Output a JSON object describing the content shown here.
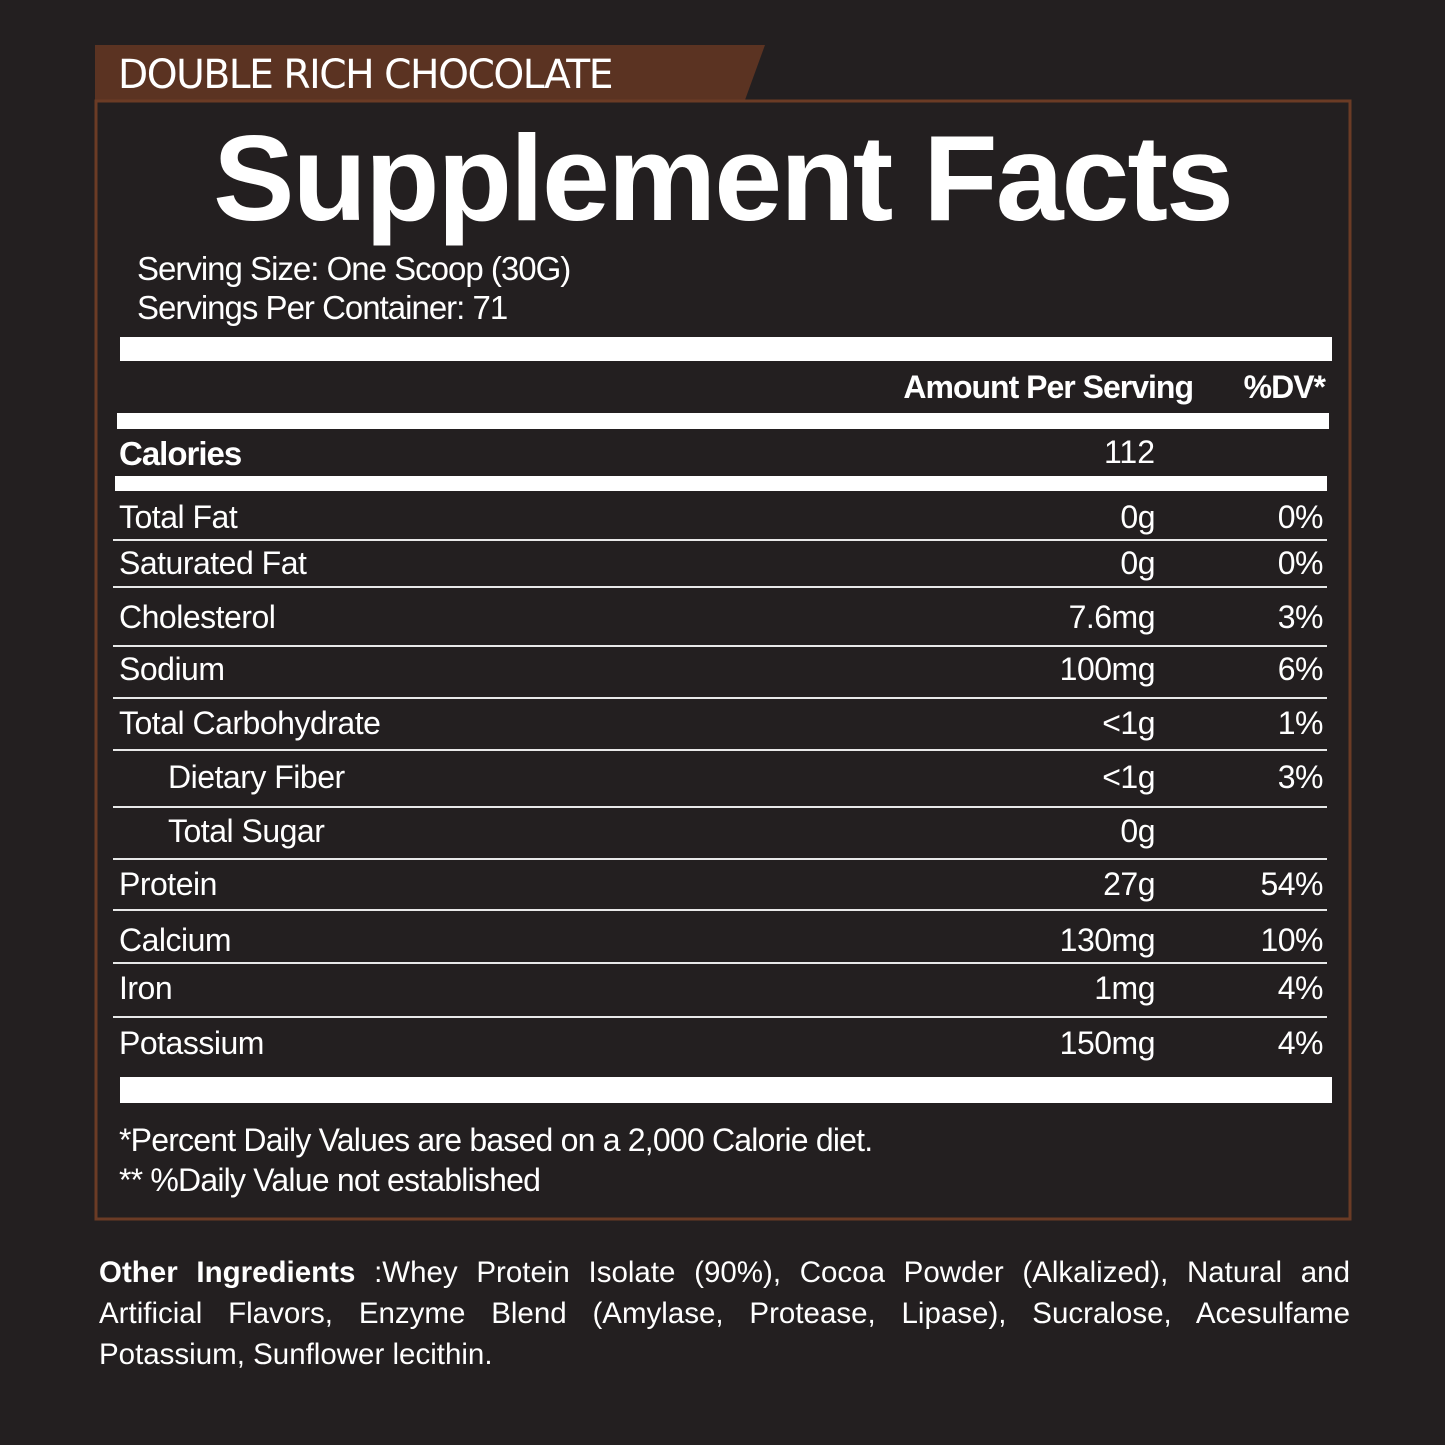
{
  "flavor": "DOUBLE RICH CHOCOLATE",
  "title": "Supplement Facts",
  "serving_size": "Serving Size: One Scoop (30G)",
  "servings_per_container": "Servings Per Container: 71",
  "columns": {
    "amount": "Amount Per Serving",
    "dv": "%DV*"
  },
  "calories": {
    "label": "Calories",
    "amount": "112"
  },
  "rows": [
    {
      "name": "Total Fat",
      "amount": "0g",
      "dv": "0%"
    },
    {
      "name": "Saturated Fat",
      "amount": "0g",
      "dv": "0%"
    },
    {
      "name": "Cholesterol",
      "amount": "7.6mg",
      "dv": "3%"
    },
    {
      "name": "Sodium",
      "amount": "100mg",
      "dv": "6%"
    },
    {
      "name": "Total Carbohydrate",
      "amount": "<1g",
      "dv": "1%",
      "subrows": [
        {
          "name": "Dietary Fiber",
          "amount": "<1g",
          "dv": "3%"
        },
        {
          "name": "Total Sugar",
          "amount": "0g"
        }
      ]
    },
    {
      "name": "Protein",
      "amount": "27g",
      "dv": "54%"
    },
    {
      "name": "Calcium",
      "amount": "130mg",
      "dv": "10%"
    },
    {
      "name": "Iron",
      "amount": "1mg",
      "dv": "4%"
    },
    {
      "name": "Potassium",
      "amount": "150mg",
      "dv": "4%"
    }
  ],
  "footnotes": [
    "*Percent Daily Values are based on a 2,000 Calorie diet.",
    "** %Daily Value not established"
  ],
  "other_ingredients": {
    "label": "Other Ingredients ",
    "text": ":Whey Protein Isolate (90%), Cocoa Powder (Alkalized), Natural and Artificial Flavors, Enzyme Blend (Amylase, Protease, Lipase), Sucralose, Acesulfame Potassium, Sunflower lecithin."
  }
}
